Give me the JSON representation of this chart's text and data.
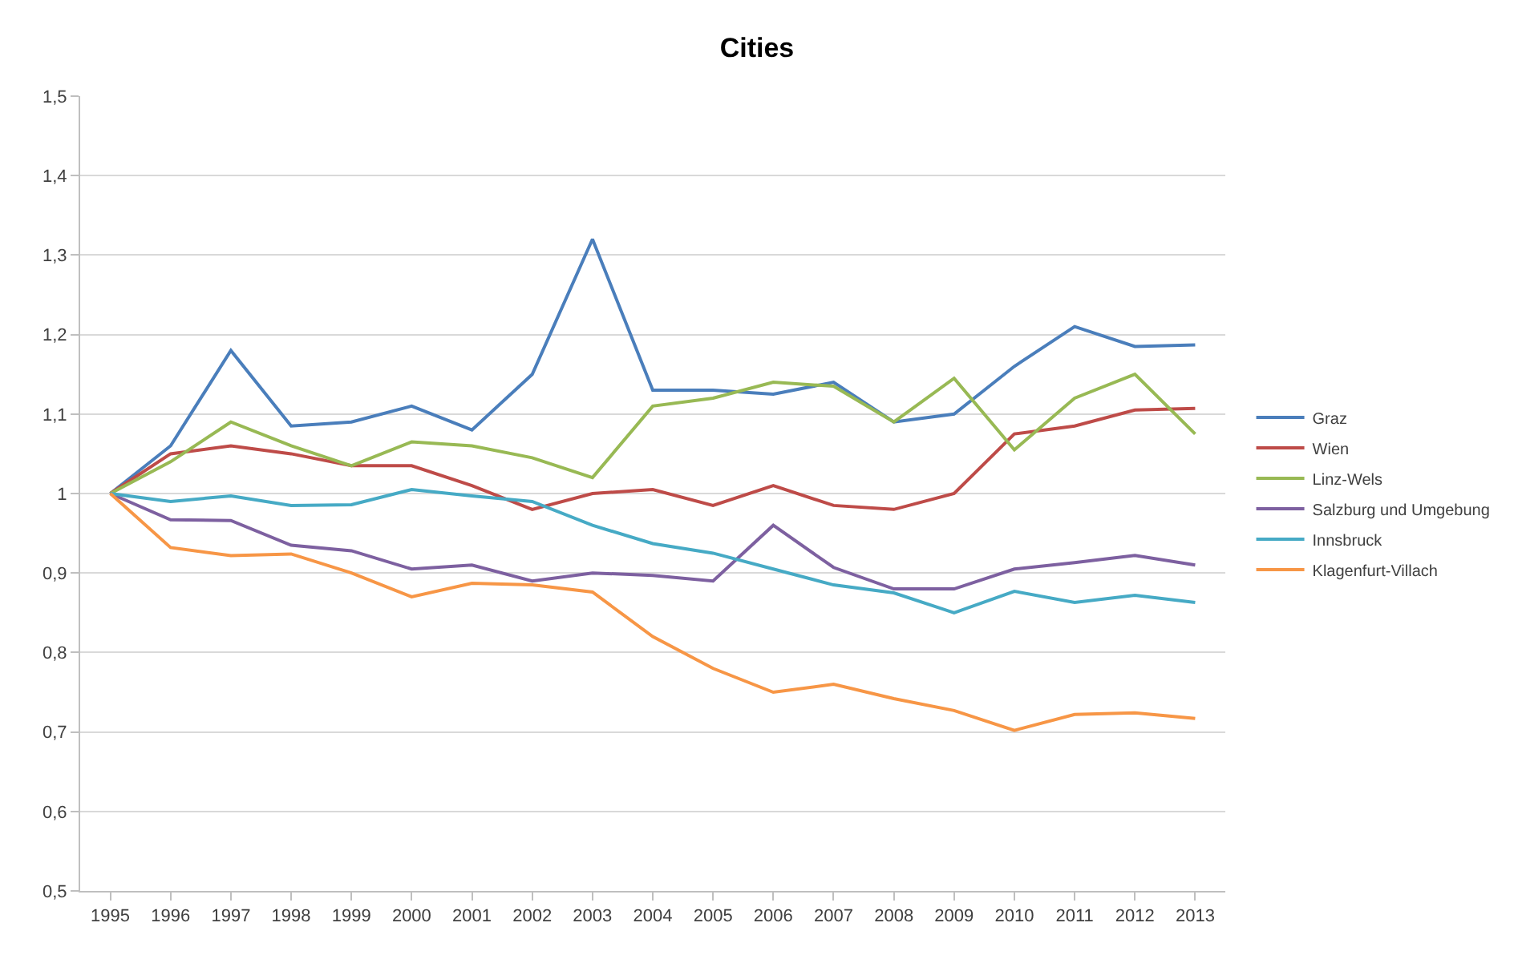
{
  "chart_data": {
    "type": "line",
    "title": "Cities",
    "categories": [
      "1995",
      "1996",
      "1997",
      "1998",
      "1999",
      "2000",
      "2001",
      "2002",
      "2003",
      "2004",
      "2005",
      "2006",
      "2007",
      "2008",
      "2009",
      "2010",
      "2011",
      "2012",
      "2013"
    ],
    "series": [
      {
        "name": "Graz",
        "color": "#4a7ebb",
        "values": [
          1.0,
          1.06,
          1.18,
          1.085,
          1.09,
          1.11,
          1.08,
          1.15,
          1.32,
          1.13,
          1.13,
          1.125,
          1.14,
          1.09,
          1.1,
          1.16,
          1.21,
          1.185,
          1.187
        ]
      },
      {
        "name": "Wien",
        "color": "#be4b48",
        "values": [
          1.0,
          1.05,
          1.06,
          1.05,
          1.035,
          1.035,
          1.01,
          0.98,
          1.0,
          1.005,
          0.985,
          1.01,
          0.985,
          0.98,
          1.0,
          1.075,
          1.085,
          1.105,
          1.107
        ]
      },
      {
        "name": "Linz-Wels",
        "color": "#98b954",
        "values": [
          1.0,
          1.04,
          1.09,
          1.06,
          1.035,
          1.065,
          1.06,
          1.045,
          1.02,
          1.11,
          1.12,
          1.14,
          1.135,
          1.09,
          1.145,
          1.055,
          1.12,
          1.15,
          1.075
        ]
      },
      {
        "name": "Salzburg und Umgebung",
        "color": "#7d60a0",
        "values": [
          1.0,
          0.967,
          0.966,
          0.935,
          0.928,
          0.905,
          0.91,
          0.89,
          0.9,
          0.897,
          0.89,
          0.96,
          0.907,
          0.88,
          0.88,
          0.905,
          0.913,
          0.922,
          0.91
        ]
      },
      {
        "name": "Innsbruck",
        "color": "#46aac5",
        "values": [
          1.0,
          0.99,
          0.997,
          0.985,
          0.986,
          1.005,
          0.997,
          0.99,
          0.96,
          0.937,
          0.925,
          0.905,
          0.885,
          0.875,
          0.85,
          0.877,
          0.863,
          0.872,
          0.863
        ]
      },
      {
        "name": "Klagenfurt-Villach",
        "color": "#f79646",
        "values": [
          1.0,
          0.932,
          0.922,
          0.924,
          0.9,
          0.87,
          0.887,
          0.885,
          0.876,
          0.82,
          0.78,
          0.75,
          0.76,
          0.742,
          0.727,
          0.702,
          0.722,
          0.724,
          0.717
        ]
      }
    ],
    "ylim": [
      0.5,
      1.5
    ],
    "yticks": [
      {
        "value": 0.5,
        "label": "0,5"
      },
      {
        "value": 0.6,
        "label": "0,6"
      },
      {
        "value": 0.7,
        "label": "0,7"
      },
      {
        "value": 0.8,
        "label": "0,8"
      },
      {
        "value": 0.9,
        "label": "0,9"
      },
      1,
      {
        "value": 1.1,
        "label": "1,1"
      },
      {
        "value": 1.2,
        "label": "1,2"
      },
      {
        "value": 1.3,
        "label": "1,3"
      },
      {
        "value": 1.4,
        "label": "1,4"
      },
      {
        "value": 1.5,
        "label": "1,5"
      }
    ],
    "grid": "y",
    "legend": "right",
    "line_style": "solid",
    "marker": "none"
  }
}
